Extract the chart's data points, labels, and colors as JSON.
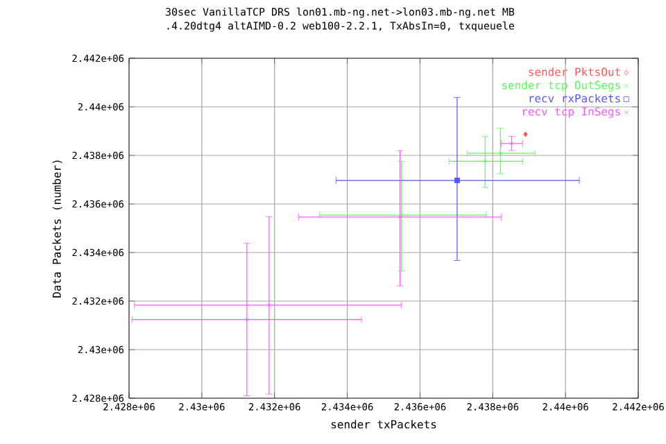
{
  "chart_data": {
    "type": "scatter",
    "title": "30sec VanillaTCP DRS lon01.mb-ng.net->lon03.mb-ng.net MB",
    "subtitle": ".4.20dtg4 altAIMD-0.2 web100-2.2.1, TxAbsIn=0, txqueuele",
    "xlabel": "sender txPackets",
    "ylabel": "Data Packets (number)",
    "xlim": [
      2428000,
      2442000
    ],
    "ylim": [
      2428000,
      2442000
    ],
    "xticks": [
      {
        "value": 2428000,
        "label": "2.428e+06"
      },
      {
        "value": 2430000,
        "label": "2.43e+06"
      },
      {
        "value": 2432000,
        "label": "2.432e+06"
      },
      {
        "value": 2434000,
        "label": "2.434e+06"
      },
      {
        "value": 2436000,
        "label": "2.436e+06"
      },
      {
        "value": 2438000,
        "label": "2.438e+06"
      },
      {
        "value": 2440000,
        "label": "2.44e+06"
      },
      {
        "value": 2442000,
        "label": "2.442e+06"
      }
    ],
    "yticks": [
      {
        "value": 2428000,
        "label": "2.428e+06"
      },
      {
        "value": 2430000,
        "label": "2.43e+06"
      },
      {
        "value": 2432000,
        "label": "2.432e+06"
      },
      {
        "value": 2434000,
        "label": "2.434e+06"
      },
      {
        "value": 2436000,
        "label": "2.436e+06"
      },
      {
        "value": 2438000,
        "label": "2.438e+06"
      },
      {
        "value": 2440000,
        "label": "2.44e+06"
      },
      {
        "value": 2442000,
        "label": "2.442e+06"
      }
    ],
    "grid": true,
    "legend": "top right",
    "series": [
      {
        "name": "sender PktsOut",
        "color": "#ff5555",
        "marker": "diamond",
        "x": [
          2438900
        ],
        "values": [
          2438870
        ]
      },
      {
        "name": "sender tcp OutSegs",
        "color": "#55ff55",
        "marker": "cross",
        "x": [
          2435490,
          2437790,
          2438210
        ],
        "values": [
          2435540,
          2437760,
          2438090
        ],
        "xerrors": [
          [
            2433240,
            2437810
          ],
          [
            2436800,
            2438820
          ],
          [
            2437300,
            2439160
          ]
        ],
        "errors": [
          [
            2433240,
            2437760
          ],
          [
            2436680,
            2438780
          ],
          [
            2437250,
            2439120
          ]
        ]
      },
      {
        "name": "recv rxPackets",
        "color": "#5555ff",
        "marker": "square",
        "x": [
          2437020
        ],
        "values": [
          2436970
        ],
        "xerrors": [
          [
            2433690,
            2440380
          ]
        ],
        "errors": [
          [
            2433670,
            2440390
          ]
        ]
      },
      {
        "name": "recv tcp InSegs",
        "color": "#ff55ff",
        "marker": "cross",
        "x": [
          2431240,
          2431850,
          2435450,
          2438520
        ],
        "values": [
          2431240,
          2431830,
          2435460,
          2438490
        ],
        "xerrors": [
          [
            2428080,
            2434390
          ],
          [
            2428150,
            2435490
          ],
          [
            2432660,
            2438230
          ],
          [
            2438230,
            2438820
          ]
        ],
        "errors": [
          [
            2428100,
            2434380
          ],
          [
            2428170,
            2435480
          ],
          [
            2432630,
            2438200
          ],
          [
            2438200,
            2438780
          ]
        ]
      }
    ]
  }
}
